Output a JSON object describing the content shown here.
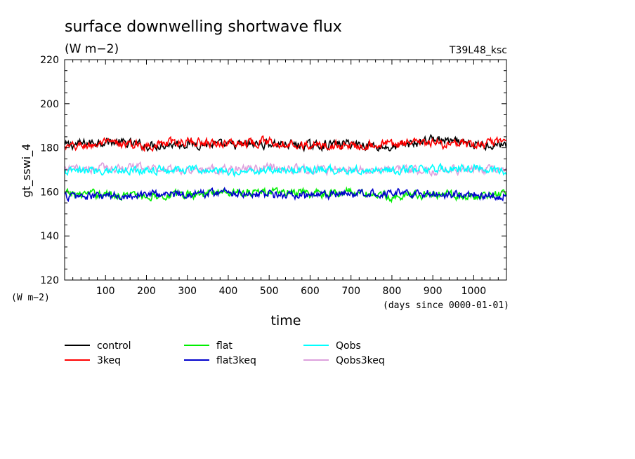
{
  "chart_data": {
    "type": "line",
    "title": "surface downwelling shortwave flux",
    "subtitle": "(W m−2)",
    "run_label": "T39L48_ksc",
    "ylabel": "gt_sswi_4",
    "y_unit": "(W m−2)",
    "xlabel": "time",
    "x_unit": "(days since 0000-01-01)",
    "xlim": [
      0,
      1080
    ],
    "ylim": [
      120,
      220
    ],
    "xticks": [
      100,
      200,
      300,
      400,
      500,
      600,
      700,
      800,
      900,
      1000
    ],
    "yticks": [
      120,
      140,
      160,
      180,
      200,
      220
    ],
    "grid": false,
    "legend_position": "bottom",
    "series": [
      {
        "name": "control",
        "color": "#000000",
        "mean": 181.5,
        "noise": 1.6,
        "x": [
          0,
          100,
          200,
          300,
          400,
          500,
          600,
          700,
          800,
          900,
          1000,
          1080
        ],
        "values": [
          181,
          183,
          181,
          182,
          181,
          182,
          181,
          182,
          180,
          184,
          181,
          182
        ]
      },
      {
        "name": "3keq",
        "color": "#ff0000",
        "mean": 181.5,
        "noise": 1.6,
        "x": [
          0,
          100,
          200,
          300,
          400,
          500,
          600,
          700,
          800,
          900,
          1000,
          1080
        ],
        "values": [
          180,
          182,
          181,
          183,
          182,
          183,
          181,
          181,
          182,
          182,
          181,
          183
        ]
      },
      {
        "name": "flat",
        "color": "#00ee00",
        "mean": 159,
        "noise": 1.5,
        "x": [
          0,
          100,
          200,
          300,
          400,
          500,
          600,
          700,
          800,
          900,
          1000,
          1080
        ],
        "values": [
          159,
          159,
          158,
          159,
          160,
          160,
          159,
          160,
          158,
          159,
          158,
          159
        ]
      },
      {
        "name": "flat3keq",
        "color": "#0000cc",
        "mean": 159,
        "noise": 1.5,
        "x": [
          0,
          100,
          200,
          300,
          400,
          500,
          600,
          700,
          800,
          900,
          1000,
          1080
        ],
        "values": [
          158,
          158,
          159,
          159,
          160,
          159,
          158,
          159,
          160,
          159,
          159,
          158
        ]
      },
      {
        "name": "Qobs",
        "color": "#00ffff",
        "mean": 170,
        "noise": 1.5,
        "x": [
          0,
          100,
          200,
          300,
          400,
          500,
          600,
          700,
          800,
          900,
          1000,
          1080
        ],
        "values": [
          169,
          170,
          170,
          170,
          169,
          170,
          170,
          170,
          170,
          170,
          171,
          169
        ]
      },
      {
        "name": "Qobs3keq",
        "color": "#dda0dd",
        "mean": 170,
        "noise": 1.5,
        "x": [
          0,
          100,
          200,
          300,
          400,
          500,
          600,
          700,
          800,
          900,
          1000,
          1080
        ],
        "values": [
          170,
          171,
          171,
          170,
          170,
          171,
          170,
          170,
          170,
          170,
          170,
          170
        ]
      }
    ]
  }
}
